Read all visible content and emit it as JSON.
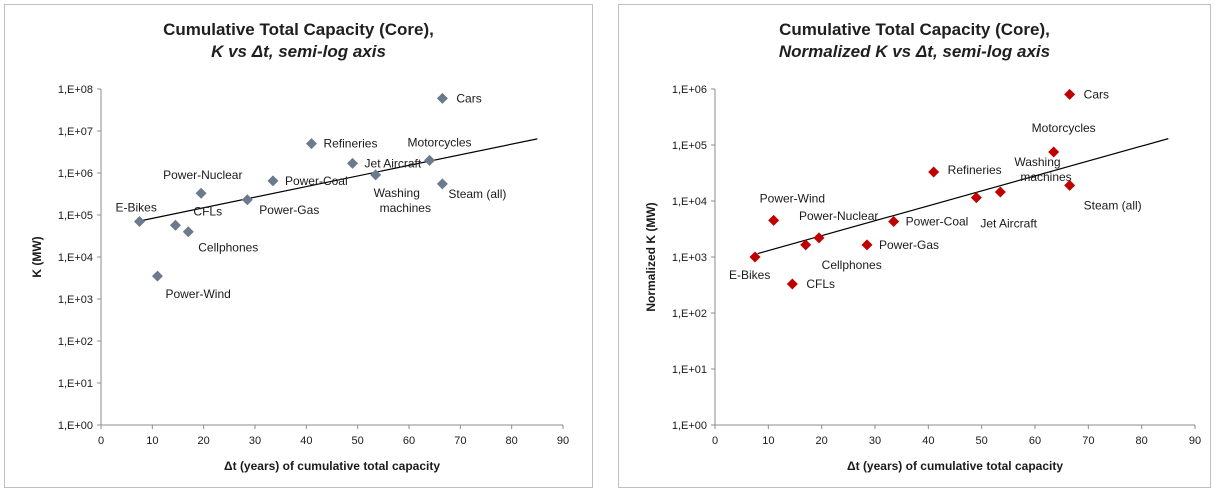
{
  "chart_data": [
    {
      "type": "scatter",
      "title": "Cumulative Total Capacity (Core),",
      "subtitle": "K vs Δt, semi-log axis",
      "xlabel": "Δt (years) of cumulative total capacity",
      "ylabel": "K (MW)",
      "xlim": [
        0,
        90
      ],
      "ylim": [
        1,
        100000000
      ],
      "yscale": "log",
      "xticks": [
        "0",
        "10",
        "20",
        "30",
        "40",
        "50",
        "60",
        "70",
        "80",
        "90"
      ],
      "yticks": [
        "1,E+00",
        "1,E+01",
        "1,E+02",
        "1,E+03",
        "1,E+04",
        "1,E+05",
        "1,E+06",
        "1,E+07",
        "1,E+08"
      ],
      "marker": "diamond",
      "marker_color": "#6c7a8e",
      "trendline": {
        "type": "exponential",
        "x": [
          8,
          85
        ],
        "y": [
          74000,
          6500000
        ]
      },
      "points": [
        {
          "label": "E-Bikes",
          "x": 7.5,
          "y": 70000
        },
        {
          "label": "Power-Wind",
          "x": 11,
          "y": 3500
        },
        {
          "label": "CFLs",
          "x": 14.5,
          "y": 57000
        },
        {
          "label": "Cellphones",
          "x": 17,
          "y": 40000
        },
        {
          "label": "Power-Nuclear",
          "x": 19.5,
          "y": 330000
        },
        {
          "label": "Power-Gas",
          "x": 28.5,
          "y": 230000
        },
        {
          "label": "Power-Coal",
          "x": 33.5,
          "y": 650000
        },
        {
          "label": "Refineries",
          "x": 41,
          "y": 5000000
        },
        {
          "label": "Jet Aircraft",
          "x": 49,
          "y": 1700000
        },
        {
          "label": "Washing machines",
          "x": 53.5,
          "y": 900000
        },
        {
          "label": "Motorcycles",
          "x": 64,
          "y": 2000000
        },
        {
          "label": "Steam (all)",
          "x": 66.5,
          "y": 550000
        },
        {
          "label": "Cars",
          "x": 66.5,
          "y": 60000000
        }
      ]
    },
    {
      "type": "scatter",
      "title": "Cumulative Total Capacity (Core),",
      "subtitle": "Normalized K vs Δt, semi-log axis",
      "xlabel": "Δt (years) of cumulative total capacity",
      "ylabel": "Normalized K (MW)",
      "xlim": [
        0,
        90
      ],
      "ylim": [
        1,
        1000000
      ],
      "yscale": "log",
      "xticks": [
        "0",
        "10",
        "20",
        "30",
        "40",
        "50",
        "60",
        "70",
        "80",
        "90"
      ],
      "yticks": [
        "1,E+00",
        "1,E+01",
        "1,E+02",
        "1,E+03",
        "1,E+04",
        "1,E+05",
        "1,E+06"
      ],
      "marker": "diamond",
      "marker_color": "#c00000",
      "trendline": {
        "type": "exponential",
        "x": [
          8,
          85
        ],
        "y": [
          1150,
          130000
        ]
      },
      "points": [
        {
          "label": "E-Bikes",
          "x": 7.5,
          "y": 1000
        },
        {
          "label": "Power-Wind",
          "x": 11,
          "y": 4500
        },
        {
          "label": "CFLs",
          "x": 14.5,
          "y": 330
        },
        {
          "label": "Cellphones",
          "x": 17,
          "y": 1650
        },
        {
          "label": "Power-Nuclear",
          "x": 19.5,
          "y": 2200
        },
        {
          "label": "Power-Gas",
          "x": 28.5,
          "y": 1650
        },
        {
          "label": "Power-Coal",
          "x": 33.5,
          "y": 4300
        },
        {
          "label": "Refineries",
          "x": 41,
          "y": 33000
        },
        {
          "label": "Jet Aircraft",
          "x": 49,
          "y": 11500
        },
        {
          "label": "Washing machines",
          "x": 53.5,
          "y": 14500
        },
        {
          "label": "Motorcycles",
          "x": 63.5,
          "y": 75000
        },
        {
          "label": "Steam (all)",
          "x": 66.5,
          "y": 19000
        },
        {
          "label": "Cars",
          "x": 66.5,
          "y": 800000
        }
      ]
    }
  ]
}
